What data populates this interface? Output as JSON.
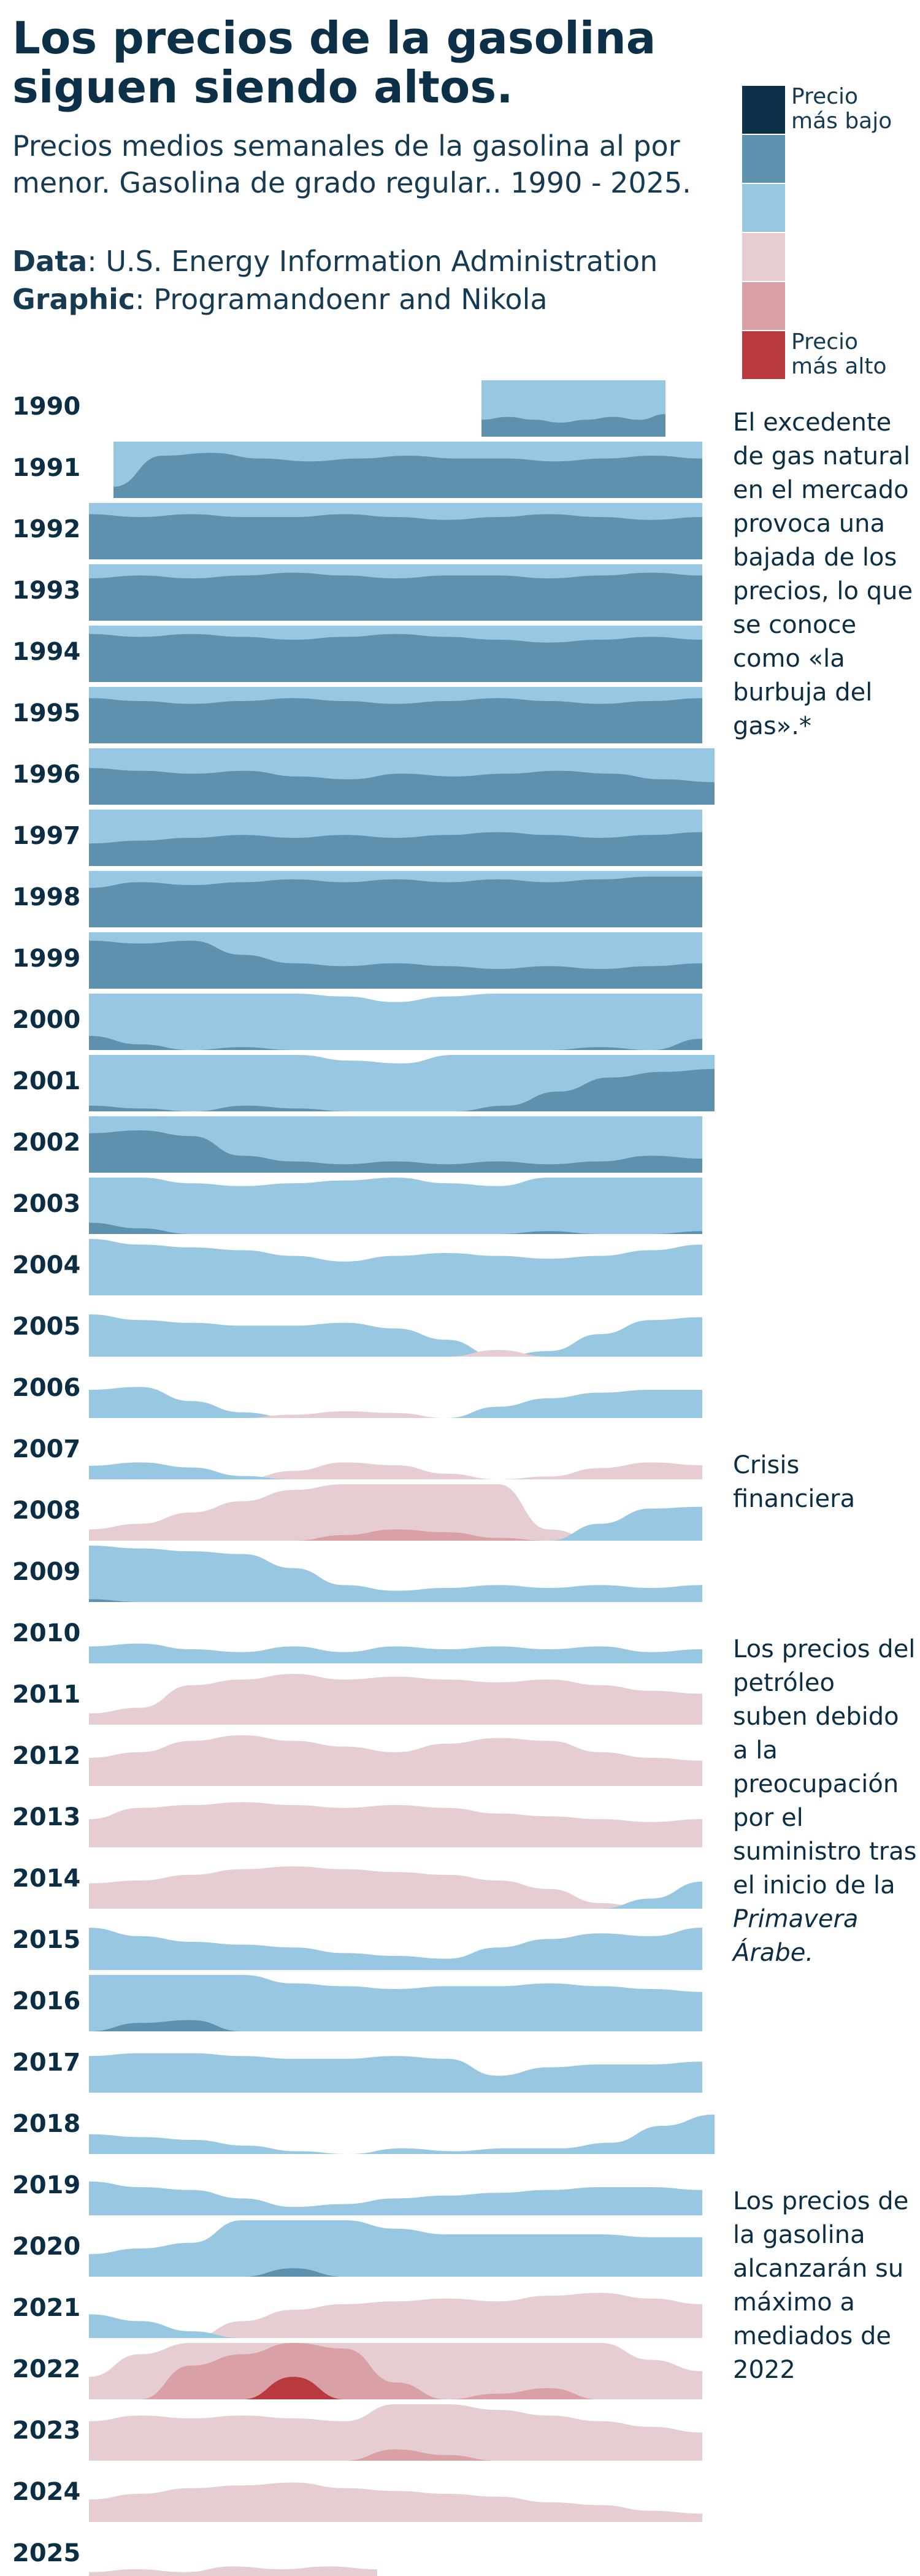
{
  "header": {
    "title": "Los precios de la gasolina siguen siendo altos.",
    "subtitle": "Precios medios semanales de la gasolina al por menor. Gasolina de grado regular.. 1990 - 2025.",
    "source_label": "Data",
    "source_value": ": U.S. Energy Information Administration",
    "credit_label": "Graphic",
    "credit_value": ": Programandoenr and Nikola"
  },
  "legend": {
    "items": [
      {
        "label": "Precio\nmás bajo",
        "color": "#0b3048"
      },
      {
        "label": "",
        "color": "#5d91ad"
      },
      {
        "label": "",
        "color": "#98c7e1"
      },
      {
        "label": "",
        "color": "#e6cdd1"
      },
      {
        "label": "",
        "color": "#d9a0a6"
      },
      {
        "label": "Precio\nmás alto",
        "color": "#b83a3f"
      }
    ]
  },
  "annotations": [
    {
      "year": "1990",
      "text": "El excedente de gas natural en el mercado provoca una bajada de los precios, lo que se conoce como «la burbuja del gas».*"
    },
    {
      "year": "2007",
      "text": "Crisis financiera"
    },
    {
      "year": "2010",
      "text": "Los precios del petróleo suben debido a la preocupación por el suministro tras el inicio de la",
      "italic": "Primavera Árabe."
    },
    {
      "year": "2019",
      "text": "Los precios de la gasolina alcanzarán su máximo a mediados de 2022"
    }
  ],
  "chart_data": {
    "type": "area",
    "chart_form": "horizon chart (ridgeline of weekly price bands per year)",
    "x": "week of year",
    "y": "average weekly retail price, regular gasoline",
    "band_order": [
      "lowest",
      "2",
      "3",
      "4",
      "5",
      "highest"
    ],
    "years": [
      {
        "year": "1990",
        "start": 0.64,
        "end": 0.94,
        "levels": [
          1.3,
          1.35,
          1.3,
          1.25,
          1.3,
          1.35,
          1.3,
          1.4
        ]
      },
      {
        "year": "1991",
        "start": 0.04,
        "end": 1.0,
        "levels": [
          1.2,
          1.75,
          1.8,
          1.7,
          1.65,
          1.7,
          1.75,
          1.7,
          1.7,
          1.65,
          1.7,
          1.75,
          1.7
        ]
      },
      {
        "year": "1992",
        "start": 0.0,
        "end": 1.0,
        "levels": [
          1.8,
          1.75,
          1.8,
          1.75,
          1.75,
          1.8,
          1.75,
          1.7,
          1.75,
          1.8,
          1.75,
          1.7,
          1.75
        ]
      },
      {
        "year": "1993",
        "start": 0.0,
        "end": 1.0,
        "levels": [
          1.75,
          1.8,
          1.75,
          1.8,
          1.85,
          1.8,
          1.75,
          1.8,
          1.8,
          1.75,
          1.8,
          1.85,
          1.8
        ]
      },
      {
        "year": "1994",
        "start": 0.0,
        "end": 1.0,
        "levels": [
          1.85,
          1.8,
          1.85,
          1.8,
          1.75,
          1.8,
          1.85,
          1.8,
          1.75,
          1.7,
          1.75,
          1.8,
          1.75
        ]
      },
      {
        "year": "1995",
        "start": 0.0,
        "end": 1.0,
        "levels": [
          1.8,
          1.75,
          1.7,
          1.75,
          1.8,
          1.75,
          1.7,
          1.75,
          1.8,
          1.75,
          1.7,
          1.75,
          1.8
        ]
      },
      {
        "year": "1996",
        "start": 0.0,
        "end": 1.02,
        "levels": [
          1.65,
          1.6,
          1.55,
          1.6,
          1.5,
          1.45,
          1.55,
          1.5,
          1.55,
          1.6,
          1.55,
          1.45,
          1.4
        ]
      },
      {
        "year": "1997",
        "start": 0.0,
        "end": 1.0,
        "levels": [
          1.4,
          1.45,
          1.5,
          1.55,
          1.5,
          1.55,
          1.5,
          1.55,
          1.6,
          1.55,
          1.5,
          1.55,
          1.6
        ]
      },
      {
        "year": "1998",
        "start": 0.0,
        "end": 1.0,
        "levels": [
          1.7,
          1.8,
          1.75,
          1.8,
          1.85,
          1.8,
          1.85,
          1.8,
          1.85,
          1.8,
          1.85,
          1.9,
          1.9
        ]
      },
      {
        "year": "1999",
        "start": 0.0,
        "end": 1.0,
        "levels": [
          1.85,
          1.8,
          1.85,
          1.6,
          1.45,
          1.4,
          1.45,
          1.4,
          1.35,
          1.4,
          1.35,
          1.4,
          1.45
        ]
      },
      {
        "year": "2000",
        "start": 0.0,
        "end": 1.0,
        "levels": [
          1.25,
          1.1,
          1.0,
          1.05,
          1.0,
          0.95,
          0.85,
          0.95,
          1.0,
          1.0,
          1.05,
          1.0,
          1.2
        ]
      },
      {
        "year": "2001",
        "start": 0.0,
        "end": 1.02,
        "levels": [
          1.1,
          1.05,
          1.0,
          1.1,
          1.05,
          0.9,
          0.85,
          1.0,
          1.1,
          1.35,
          1.6,
          1.7,
          1.75
        ]
      },
      {
        "year": "2002",
        "start": 0.0,
        "end": 1.0,
        "levels": [
          1.7,
          1.75,
          1.65,
          1.3,
          1.2,
          1.15,
          1.2,
          1.15,
          1.2,
          1.15,
          1.2,
          1.3,
          1.25
        ]
      },
      {
        "year": "2003",
        "start": 0.0,
        "end": 1.0,
        "levels": [
          1.2,
          1.1,
          0.9,
          0.85,
          0.9,
          0.95,
          1.0,
          0.9,
          0.85,
          1.05,
          1.0,
          1.0,
          1.05
        ]
      },
      {
        "year": "2004",
        "start": 0.0,
        "end": 1.0,
        "levels": [
          1.0,
          0.9,
          0.85,
          0.8,
          0.7,
          0.6,
          0.7,
          0.75,
          0.7,
          0.65,
          0.7,
          0.8,
          0.9
        ]
      },
      {
        "year": "2005",
        "start": 0.0,
        "end": 1.0,
        "levels": [
          0.75,
          0.65,
          0.6,
          0.55,
          0.55,
          0.6,
          0.5,
          0.3,
          -0.2,
          0.1,
          0.4,
          0.65,
          0.7
        ]
      },
      {
        "year": "2006",
        "start": 0.0,
        "end": 1.0,
        "levels": [
          0.5,
          0.55,
          0.3,
          0.1,
          -0.1,
          -0.2,
          -0.15,
          0.0,
          0.2,
          0.35,
          0.45,
          0.5,
          0.5
        ]
      },
      {
        "year": "2007",
        "start": 0.0,
        "end": 1.0,
        "levels": [
          0.4,
          0.5,
          0.35,
          0.1,
          -0.15,
          -0.3,
          -0.25,
          -0.1,
          0.0,
          -0.05,
          -0.2,
          -0.3,
          -0.25
        ]
      },
      {
        "year": "2008",
        "start": 0.0,
        "end": 1.0,
        "levels": [
          -0.2,
          -0.3,
          -0.5,
          -0.7,
          -0.9,
          -1.1,
          -1.2,
          -1.15,
          -1.05,
          -0.2,
          0.5,
          0.95,
          1.0
        ]
      },
      {
        "year": "2009",
        "start": 0.0,
        "end": 1.0,
        "levels": [
          1.05,
          0.95,
          0.9,
          0.85,
          0.6,
          0.3,
          0.2,
          0.25,
          0.3,
          0.25,
          0.3,
          0.25,
          0.3
        ]
      },
      {
        "year": "2010",
        "start": 0.0,
        "end": 1.0,
        "levels": [
          0.3,
          0.35,
          0.25,
          0.2,
          0.3,
          0.2,
          0.3,
          0.25,
          0.3,
          0.25,
          0.3,
          0.2,
          0.25
        ]
      },
      {
        "year": "2011",
        "start": 0.0,
        "end": 1.0,
        "levels": [
          -0.2,
          -0.3,
          -0.7,
          -0.8,
          -0.9,
          -0.8,
          -0.85,
          -0.8,
          -0.75,
          -0.8,
          -0.7,
          -0.6,
          -0.55
        ]
      },
      {
        "year": "2012",
        "start": 0.0,
        "end": 1.0,
        "levels": [
          -0.5,
          -0.6,
          -0.8,
          -0.9,
          -0.8,
          -0.7,
          -0.6,
          -0.75,
          -0.85,
          -0.8,
          -0.6,
          -0.5,
          -0.45
        ]
      },
      {
        "year": "2013",
        "start": 0.0,
        "end": 1.0,
        "levels": [
          -0.5,
          -0.7,
          -0.75,
          -0.8,
          -0.75,
          -0.7,
          -0.75,
          -0.7,
          -0.6,
          -0.55,
          -0.5,
          -0.45,
          -0.5
        ]
      },
      {
        "year": "2014",
        "start": 0.0,
        "end": 1.0,
        "levels": [
          -0.45,
          -0.5,
          -0.6,
          -0.7,
          -0.75,
          -0.7,
          -0.65,
          -0.6,
          -0.5,
          -0.35,
          -0.1,
          0.3,
          0.8
        ]
      },
      {
        "year": "2015",
        "start": 0.0,
        "end": 1.0,
        "levels": [
          0.75,
          0.6,
          0.5,
          0.45,
          0.4,
          0.3,
          0.25,
          0.2,
          0.4,
          0.55,
          0.65,
          0.6,
          0.75
        ]
      },
      {
        "year": "2016",
        "start": 0.0,
        "end": 1.0,
        "levels": [
          1.0,
          1.15,
          1.2,
          1.0,
          0.85,
          0.8,
          0.75,
          0.8,
          0.8,
          0.85,
          0.8,
          0.75,
          0.7
        ]
      },
      {
        "year": "2017",
        "start": 0.0,
        "end": 1.0,
        "levels": [
          0.65,
          0.7,
          0.7,
          0.65,
          0.6,
          0.6,
          0.65,
          0.6,
          0.3,
          0.45,
          0.5,
          0.5,
          0.55
        ]
      },
      {
        "year": "2018",
        "start": 0.0,
        "end": 1.02,
        "levels": [
          0.35,
          0.3,
          0.25,
          0.15,
          0.05,
          0.0,
          0.1,
          0.05,
          0.1,
          0.1,
          0.2,
          0.5,
          0.7
        ]
      },
      {
        "year": "2019",
        "start": 0.0,
        "end": 1.0,
        "levels": [
          0.6,
          0.5,
          0.45,
          0.3,
          0.15,
          0.2,
          0.3,
          0.35,
          0.4,
          0.45,
          0.5,
          0.5,
          0.45
        ]
      },
      {
        "year": "2020",
        "start": 0.0,
        "end": 1.0,
        "levels": [
          0.4,
          0.5,
          0.6,
          1.0,
          1.15,
          1.0,
          0.85,
          0.75,
          0.75,
          0.75,
          0.75,
          0.7,
          0.7
        ]
      },
      {
        "year": "2021",
        "start": 0.0,
        "end": 1.0,
        "levels": [
          0.7,
          0.5,
          0.2,
          -0.3,
          -0.5,
          -0.6,
          -0.65,
          -0.7,
          -0.65,
          -0.75,
          -0.8,
          -0.7,
          -0.6
        ]
      },
      {
        "year": "2022",
        "start": 0.0,
        "end": 1.0,
        "levels": [
          -0.4,
          -0.8,
          -1.6,
          -1.8,
          -2.4,
          -1.9,
          -1.3,
          -1.0,
          -1.1,
          -1.2,
          -1.0,
          -0.7,
          -0.5
        ]
      },
      {
        "year": "2023",
        "start": 0.0,
        "end": 1.0,
        "levels": [
          -0.7,
          -0.8,
          -0.75,
          -0.8,
          -0.75,
          -0.7,
          -1.2,
          -1.1,
          -0.9,
          -0.8,
          -0.7,
          -0.6,
          -0.5
        ]
      },
      {
        "year": "2024",
        "start": 0.0,
        "end": 1.0,
        "levels": [
          -0.4,
          -0.5,
          -0.6,
          -0.65,
          -0.7,
          -0.6,
          -0.55,
          -0.5,
          -0.45,
          -0.35,
          -0.3,
          -0.2,
          -0.15
        ]
      },
      {
        "year": "2025",
        "start": 0.0,
        "end": 0.47,
        "levels": [
          -0.2,
          -0.25,
          -0.2,
          -0.3,
          -0.25,
          -0.3,
          -0.25
        ]
      }
    ]
  }
}
